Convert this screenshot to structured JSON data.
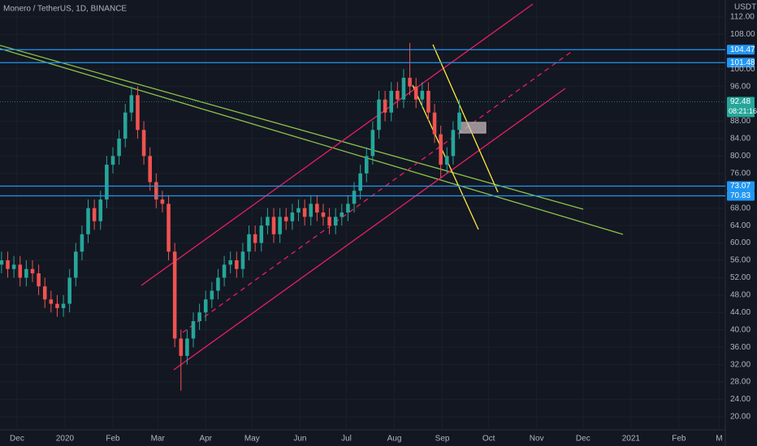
{
  "chart_data": {
    "type": "candlestick",
    "title": "Monero / TetherUS, 1D, BINANCE",
    "currency": "USDT",
    "x": [
      -10,
      -6,
      -2,
      2,
      6,
      10,
      14,
      18,
      22,
      26,
      30,
      34,
      38,
      42,
      46,
      50,
      54,
      58,
      62,
      66,
      70,
      74,
      78,
      82,
      86,
      90,
      94,
      98,
      102,
      106,
      110,
      114,
      118,
      122,
      126,
      130,
      134,
      138,
      142,
      146,
      150,
      154,
      158,
      162,
      166,
      170,
      174,
      178,
      182,
      186,
      190,
      194,
      198,
      202,
      206,
      210,
      214,
      218,
      222,
      226,
      230,
      234,
      238,
      242,
      246,
      250,
      254,
      258,
      262,
      266,
      270,
      274,
      278,
      282,
      286
    ],
    "open": [
      55,
      56,
      54,
      55,
      52,
      54,
      53,
      50,
      47,
      46,
      45,
      46,
      52,
      58,
      62,
      68,
      65,
      70,
      78,
      80,
      84,
      90,
      94,
      86,
      80,
      74,
      70,
      69,
      58,
      38,
      34,
      38,
      42,
      44,
      47,
      49,
      52,
      55,
      56,
      54,
      58,
      62,
      60,
      64,
      66,
      62,
      66,
      65,
      67,
      68,
      66,
      69,
      67,
      66,
      64,
      66,
      67,
      69,
      72,
      76,
      80,
      86,
      93,
      90,
      95,
      93,
      98,
      96,
      93,
      95,
      90,
      85,
      78,
      80,
      86
    ],
    "high": [
      58,
      58,
      57,
      57,
      56,
      56,
      55,
      52,
      49,
      48,
      48,
      54,
      60,
      64,
      70,
      70,
      72,
      80,
      82,
      86,
      92,
      96,
      96,
      88,
      82,
      76,
      72,
      71,
      60,
      40,
      40,
      44,
      46,
      49,
      51,
      54,
      57,
      58,
      58,
      60,
      64,
      64,
      66,
      68,
      68,
      68,
      68,
      69,
      70,
      70,
      71,
      71,
      69,
      68,
      68,
      69,
      71,
      74,
      78,
      82,
      88,
      95,
      95,
      97,
      97,
      100,
      106,
      98,
      97,
      97,
      92,
      87,
      82,
      88,
      93
    ],
    "low": [
      53,
      52,
      52,
      50,
      50,
      51,
      48,
      45,
      44,
      43,
      43,
      44,
      50,
      56,
      60,
      63,
      63,
      68,
      76,
      78,
      82,
      88,
      84,
      78,
      72,
      68,
      67,
      56,
      36,
      26,
      32,
      36,
      40,
      42,
      45,
      47,
      50,
      53,
      52,
      52,
      56,
      58,
      58,
      62,
      60,
      60,
      63,
      63,
      65,
      64,
      64,
      65,
      64,
      62,
      62,
      64,
      65,
      67,
      70,
      74,
      78,
      84,
      88,
      88,
      91,
      91,
      94,
      91,
      91,
      88,
      83,
      75,
      76,
      78,
      84
    ],
    "close": [
      56,
      54,
      55,
      52,
      54,
      53,
      50,
      47,
      46,
      45,
      46,
      52,
      58,
      62,
      68,
      65,
      70,
      78,
      80,
      84,
      90,
      94,
      86,
      80,
      74,
      70,
      69,
      58,
      38,
      34,
      38,
      42,
      44,
      47,
      49,
      52,
      55,
      56,
      54,
      58,
      62,
      60,
      64,
      66,
      62,
      66,
      65,
      67,
      68,
      66,
      69,
      67,
      66,
      64,
      66,
      67,
      69,
      72,
      76,
      80,
      86,
      93,
      90,
      95,
      93,
      98,
      96,
      93,
      95,
      90,
      85,
      78,
      80,
      86,
      90
    ],
    "up_color": "#26a69a",
    "down_color": "#ef5350",
    "xlim": [
      -11,
      458
    ],
    "xticks": [
      {
        "value": 0,
        "label": "Dec"
      },
      {
        "value": 31,
        "label": "2020"
      },
      {
        "value": 62,
        "label": "Feb"
      },
      {
        "value": 91,
        "label": "Mar"
      },
      {
        "value": 122,
        "label": "Apr"
      },
      {
        "value": 152,
        "label": "May"
      },
      {
        "value": 183,
        "label": "Jun"
      },
      {
        "value": 213,
        "label": "Jul"
      },
      {
        "value": 244,
        "label": "Aug"
      },
      {
        "value": 275,
        "label": "Sep"
      },
      {
        "value": 305,
        "label": "Oct"
      },
      {
        "value": 336,
        "label": "Nov"
      },
      {
        "value": 366,
        "label": "Dec"
      },
      {
        "value": 397,
        "label": "2021"
      },
      {
        "value": 428,
        "label": "Feb"
      },
      {
        "value": 454,
        "label": "M"
      }
    ],
    "ylim": [
      17,
      115.9
    ],
    "yticks": [
      {
        "value": 20,
        "label": "20.00"
      },
      {
        "value": 24,
        "label": "24.00"
      },
      {
        "value": 28,
        "label": "28.00"
      },
      {
        "value": 32,
        "label": "32.00"
      },
      {
        "value": 36,
        "label": "36.00"
      },
      {
        "value": 40,
        "label": "40.00"
      },
      {
        "value": 44,
        "label": "44.00"
      },
      {
        "value": 48,
        "label": "48.00"
      },
      {
        "value": 52,
        "label": "52.00"
      },
      {
        "value": 56,
        "label": "56.00"
      },
      {
        "value": 60,
        "label": "60.00"
      },
      {
        "value": 64,
        "label": "64.00"
      },
      {
        "value": 68,
        "label": "68.00"
      },
      {
        "value": 76,
        "label": "76.00"
      },
      {
        "value": 80,
        "label": "80.00"
      },
      {
        "value": 84,
        "label": "84.00"
      },
      {
        "value": 88,
        "label": "88.00"
      },
      {
        "value": 96,
        "label": "96.00"
      },
      {
        "value": 100,
        "label": "100.00"
      },
      {
        "value": 108,
        "label": "108.00"
      },
      {
        "value": 112,
        "label": "112.00"
      }
    ],
    "levels": [
      104.47,
      101.48,
      73.07,
      70.83
    ],
    "level_color": "#2196f3",
    "last_price": 92.48,
    "countdown": "08:21:16",
    "grid": true
  }
}
